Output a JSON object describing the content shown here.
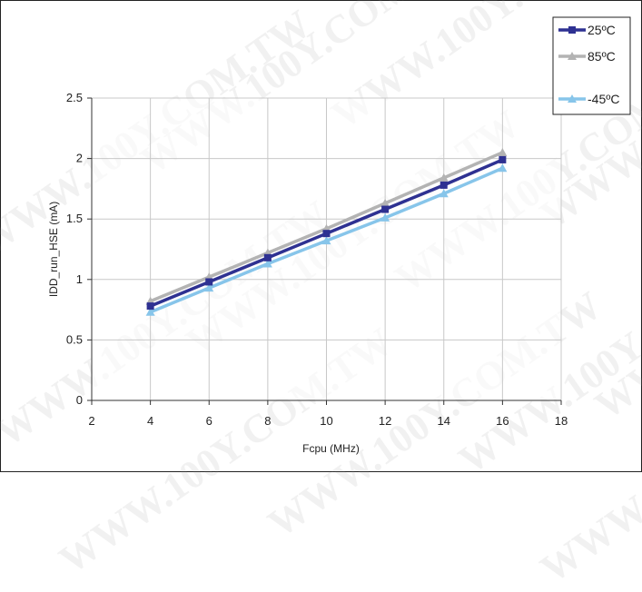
{
  "chart_data": {
    "type": "line",
    "title": "",
    "xlabel": "Fcpu (MHz)",
    "ylabel": "IDD_run_HSE (mA)",
    "xlim": [
      2,
      18
    ],
    "ylim": [
      0,
      2.5
    ],
    "xticks": [
      2,
      4,
      6,
      8,
      10,
      12,
      14,
      16,
      18
    ],
    "yticks": [
      0,
      0.5,
      1,
      1.5,
      2,
      2.5
    ],
    "ytick_labels": [
      "0",
      "0.5",
      "1",
      "1.5",
      "2",
      "2.5"
    ],
    "grid": true,
    "legend_position": "top-right",
    "x": [
      4,
      6,
      8,
      10,
      12,
      14,
      16
    ],
    "series": [
      {
        "name": "25ºC",
        "color": "#2e3192",
        "marker": "square",
        "values": [
          0.78,
          0.98,
          1.18,
          1.38,
          1.58,
          1.78,
          1.99
        ]
      },
      {
        "name": "85ºC",
        "color": "#b3b3b3",
        "marker": "triangle",
        "values": [
          0.82,
          1.02,
          1.22,
          1.42,
          1.63,
          1.84,
          2.05
        ]
      },
      {
        "name": "-45ºC",
        "color": "#87c5ea",
        "marker": "triangle",
        "values": [
          0.73,
          0.93,
          1.13,
          1.32,
          1.51,
          1.71,
          1.92
        ]
      }
    ]
  },
  "watermark_text": "WWW.100Y.COM.TW"
}
